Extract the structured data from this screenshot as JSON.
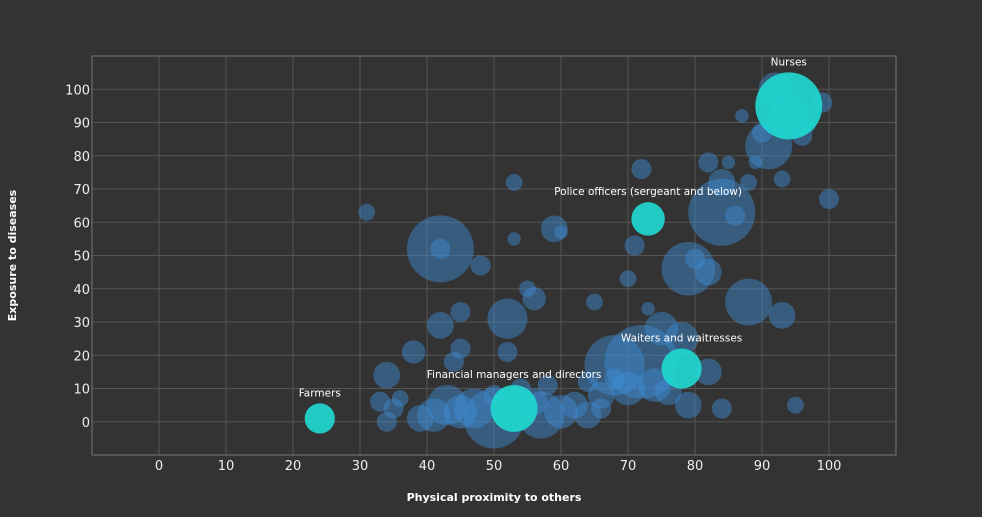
{
  "chart_data": {
    "type": "scatter",
    "xlabel": "Physical proximity to others",
    "ylabel": "Exposure to diseases",
    "xlim": [
      -10,
      110
    ],
    "ylim": [
      -10,
      110
    ],
    "xticks": [
      0,
      10,
      20,
      30,
      40,
      50,
      60,
      70,
      80,
      90,
      100
    ],
    "yticks": [
      0,
      10,
      20,
      30,
      40,
      50,
      60,
      70,
      80,
      90,
      100
    ],
    "grid": true,
    "colors": {
      "background": "#333333",
      "points": "#3d8fd8",
      "highlight": "#1fd8d0",
      "grid": "#555555"
    },
    "highlights": [
      {
        "label": "Nurses",
        "x": 94,
        "y": 95,
        "size": 10
      },
      {
        "label": "Police officers (sergeant and below)",
        "x": 73,
        "y": 61,
        "size": 5
      },
      {
        "label": "Waiters and waitresses",
        "x": 78,
        "y": 16,
        "size": 6
      },
      {
        "label": "Financial managers and directors",
        "x": 53,
        "y": 4,
        "size": 7
      },
      {
        "label": "Farmers",
        "x": 24,
        "y": 1,
        "size": 4.5
      }
    ],
    "points": [
      {
        "x": 42,
        "y": 52,
        "s": 10
      },
      {
        "x": 42,
        "y": 52,
        "s": 3
      },
      {
        "x": 84,
        "y": 63,
        "s": 10
      },
      {
        "x": 86,
        "y": 62,
        "s": 3
      },
      {
        "x": 79,
        "y": 46,
        "s": 8
      },
      {
        "x": 82,
        "y": 45,
        "s": 4
      },
      {
        "x": 91,
        "y": 83,
        "s": 7
      },
      {
        "x": 92,
        "y": 100,
        "s": 5
      },
      {
        "x": 94,
        "y": 92,
        "s": 6
      },
      {
        "x": 96,
        "y": 86,
        "s": 3
      },
      {
        "x": 99,
        "y": 96,
        "s": 3
      },
      {
        "x": 90,
        "y": 87,
        "s": 3
      },
      {
        "x": 88,
        "y": 36,
        "s": 7
      },
      {
        "x": 93,
        "y": 32,
        "s": 4
      },
      {
        "x": 72,
        "y": 18,
        "s": 11
      },
      {
        "x": 68,
        "y": 17,
        "s": 9
      },
      {
        "x": 50,
        "y": 1,
        "s": 9
      },
      {
        "x": 57,
        "y": 2,
        "s": 7
      },
      {
        "x": 52,
        "y": 31,
        "s": 6
      },
      {
        "x": 48,
        "y": 47,
        "s": 3
      },
      {
        "x": 42,
        "y": 29,
        "s": 4
      },
      {
        "x": 38,
        "y": 21,
        "s": 3.5
      },
      {
        "x": 34,
        "y": 14,
        "s": 4
      },
      {
        "x": 59,
        "y": 58,
        "s": 4
      },
      {
        "x": 56,
        "y": 37,
        "s": 3.5
      },
      {
        "x": 75,
        "y": 28,
        "s": 5
      },
      {
        "x": 78,
        "y": 25,
        "s": 5
      },
      {
        "x": 82,
        "y": 15,
        "s": 4
      },
      {
        "x": 84,
        "y": 72,
        "s": 4
      },
      {
        "x": 82,
        "y": 78,
        "s": 3
      },
      {
        "x": 72,
        "y": 76,
        "s": 3
      },
      {
        "x": 53,
        "y": 72,
        "s": 2.5
      },
      {
        "x": 31,
        "y": 63,
        "s": 2.5
      },
      {
        "x": 100,
        "y": 67,
        "s": 3
      },
      {
        "x": 95,
        "y": 5,
        "s": 2.5
      },
      {
        "x": 84,
        "y": 4,
        "s": 3
      },
      {
        "x": 47,
        "y": 4,
        "s": 6
      },
      {
        "x": 45,
        "y": 3,
        "s": 5
      },
      {
        "x": 43,
        "y": 5,
        "s": 6
      },
      {
        "x": 41,
        "y": 2,
        "s": 5
      },
      {
        "x": 39,
        "y": 1,
        "s": 4
      },
      {
        "x": 60,
        "y": 3,
        "s": 5
      },
      {
        "x": 62,
        "y": 5,
        "s": 4
      },
      {
        "x": 64,
        "y": 2,
        "s": 4
      },
      {
        "x": 66,
        "y": 8,
        "s": 4
      },
      {
        "x": 70,
        "y": 10,
        "s": 5
      },
      {
        "x": 74,
        "y": 11,
        "s": 5
      },
      {
        "x": 76,
        "y": 9,
        "s": 4
      },
      {
        "x": 79,
        "y": 5,
        "s": 4
      },
      {
        "x": 45,
        "y": 33,
        "s": 3
      },
      {
        "x": 44,
        "y": 18,
        "s": 3
      },
      {
        "x": 45,
        "y": 22,
        "s": 3
      },
      {
        "x": 52,
        "y": 21,
        "s": 3
      },
      {
        "x": 55,
        "y": 40,
        "s": 2.5
      },
      {
        "x": 71,
        "y": 53,
        "s": 3
      },
      {
        "x": 80,
        "y": 49,
        "s": 3
      },
      {
        "x": 70,
        "y": 43,
        "s": 2.5
      },
      {
        "x": 65,
        "y": 36,
        "s": 2.5
      },
      {
        "x": 73,
        "y": 34,
        "s": 2
      },
      {
        "x": 60,
        "y": 57,
        "s": 2
      },
      {
        "x": 53,
        "y": 55,
        "s": 2
      },
      {
        "x": 33,
        "y": 6,
        "s": 3
      },
      {
        "x": 35,
        "y": 4,
        "s": 3
      },
      {
        "x": 34,
        "y": 0,
        "s": 3
      },
      {
        "x": 36,
        "y": 7,
        "s": 2.5
      },
      {
        "x": 54,
        "y": 10,
        "s": 3
      },
      {
        "x": 56,
        "y": 6,
        "s": 4
      },
      {
        "x": 58,
        "y": 11,
        "s": 3
      },
      {
        "x": 50,
        "y": 8,
        "s": 3
      },
      {
        "x": 64,
        "y": 12,
        "s": 3
      },
      {
        "x": 66,
        "y": 4,
        "s": 3
      },
      {
        "x": 68,
        "y": 13,
        "s": 3
      },
      {
        "x": 88,
        "y": 72,
        "s": 2.5
      },
      {
        "x": 85,
        "y": 78,
        "s": 2
      },
      {
        "x": 89,
        "y": 78,
        "s": 2
      },
      {
        "x": 93,
        "y": 73,
        "s": 2.5
      },
      {
        "x": 87,
        "y": 92,
        "s": 2
      },
      {
        "x": 97,
        "y": 89,
        "s": 2
      }
    ]
  }
}
